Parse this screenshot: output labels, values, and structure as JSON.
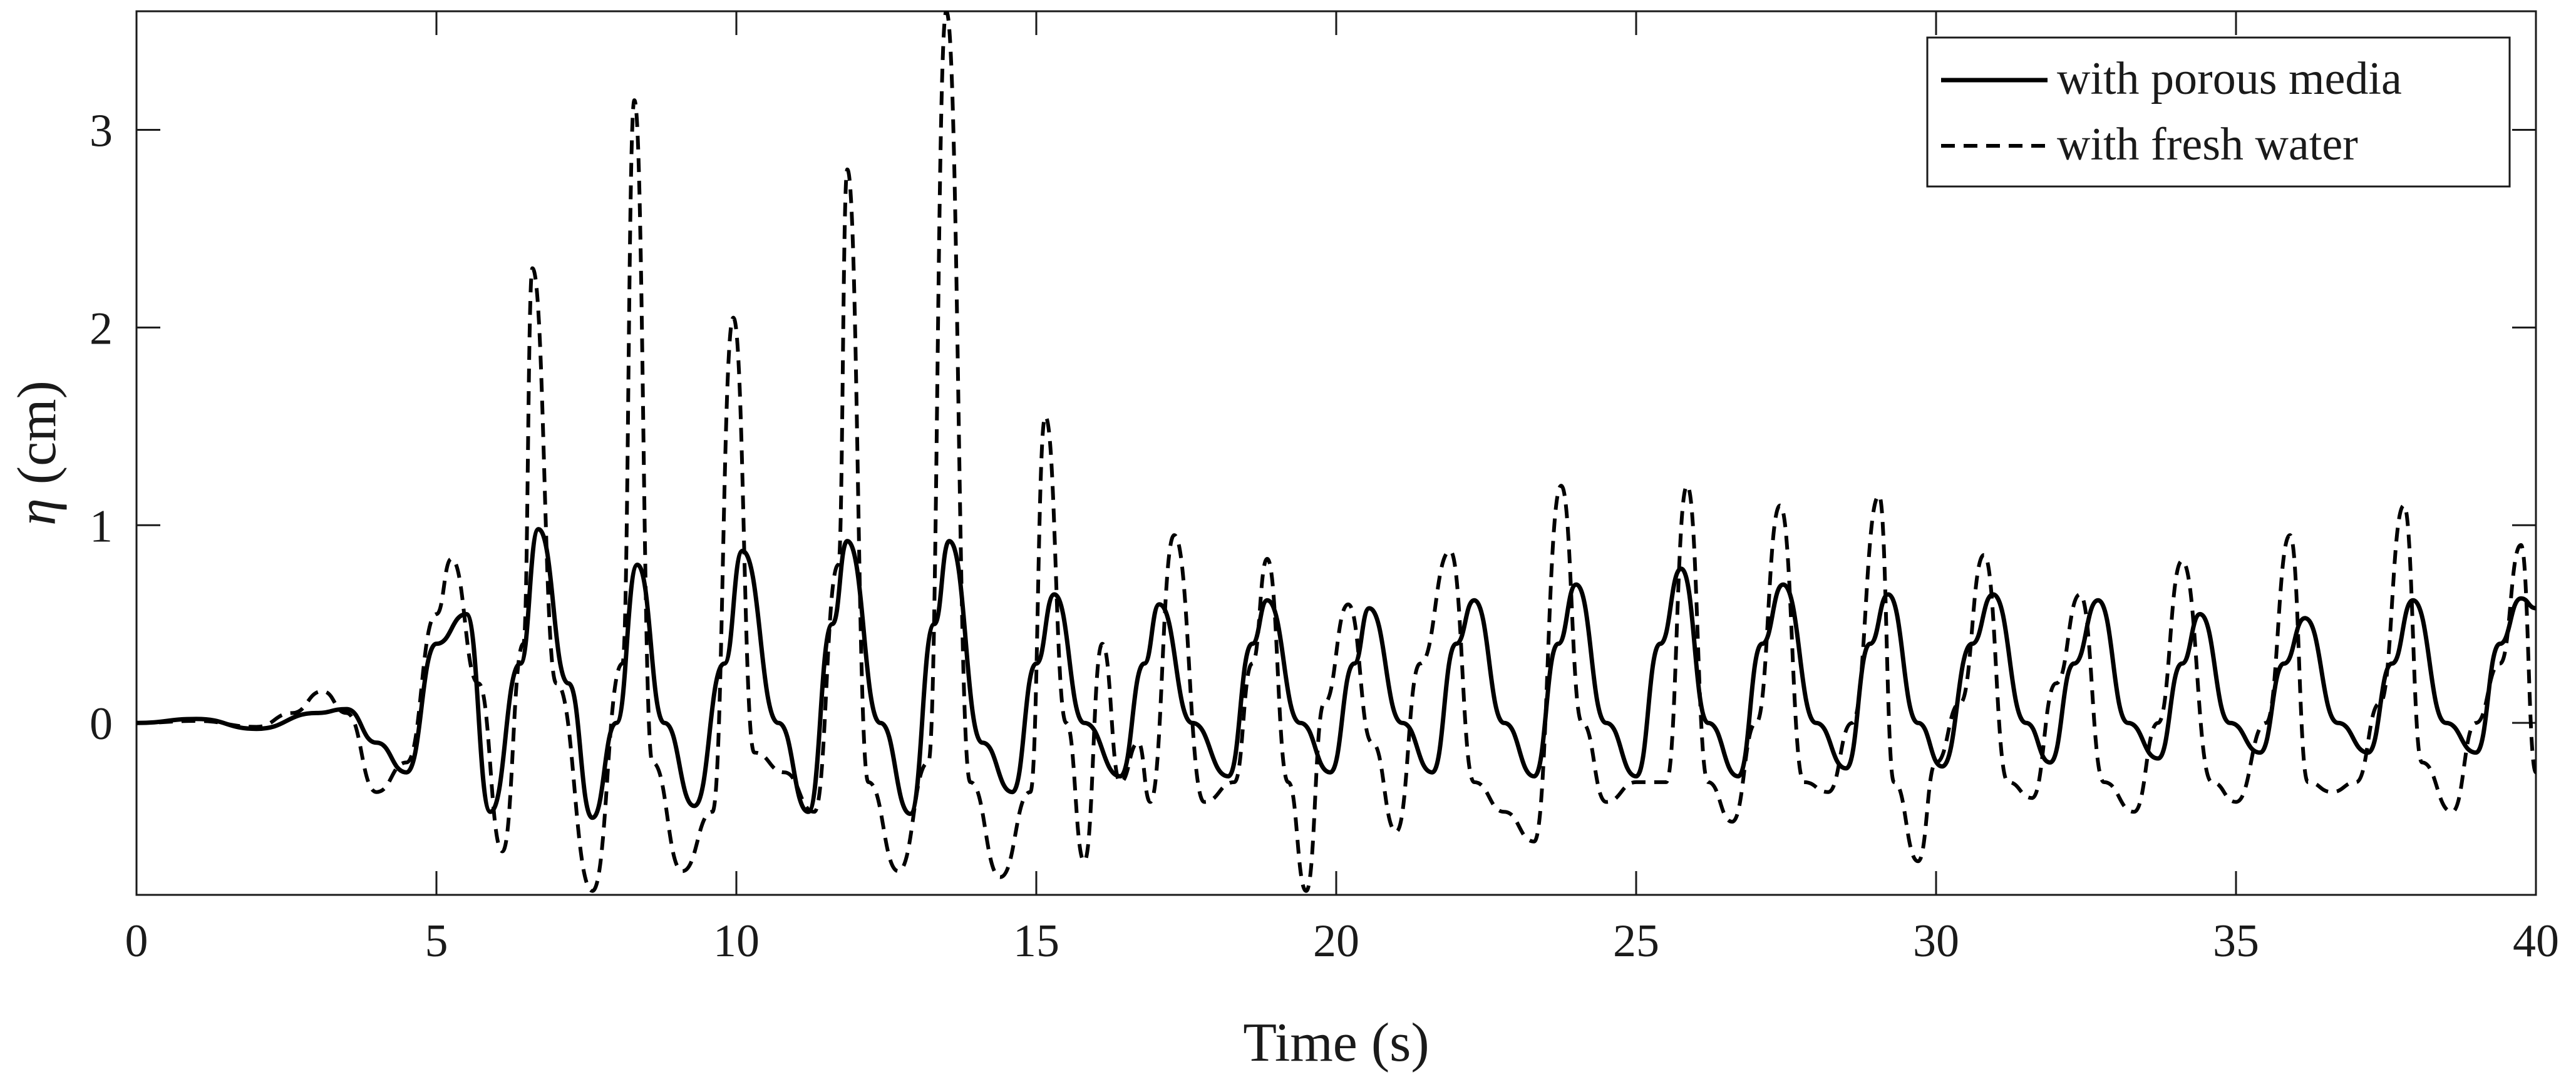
{
  "chart_data": {
    "type": "line",
    "xlabel": "Time (s)",
    "ylabel_symbol": "η",
    "ylabel_unit": " (cm)",
    "xlim": [
      0,
      40
    ],
    "ylim": [
      -0.87,
      3.6
    ],
    "xticks": [
      0,
      5,
      10,
      15,
      20,
      25,
      30,
      35,
      40
    ],
    "yticks": [
      0,
      1,
      2,
      3
    ],
    "grid": false,
    "legend_position": "top-right",
    "colors": {
      "series_line": "#000000",
      "axes": "#1a1a1a",
      "background": "#ffffff"
    },
    "series": [
      {
        "name": "with porous media",
        "style": "solid",
        "x": [
          0,
          1,
          2,
          3,
          3.5,
          4,
          4.5,
          5,
          5.5,
          5.9,
          6.4,
          6.7,
          7.2,
          7.6,
          8.0,
          8.35,
          8.8,
          9.3,
          9.8,
          10.1,
          10.7,
          11.2,
          11.6,
          11.85,
          12.4,
          12.9,
          13.3,
          13.55,
          14.1,
          14.6,
          15.0,
          15.3,
          15.8,
          16.4,
          16.8,
          17.05,
          17.6,
          18.2,
          18.6,
          18.85,
          19.4,
          19.9,
          20.3,
          20.55,
          21.1,
          21.6,
          22.0,
          22.3,
          22.8,
          23.3,
          23.7,
          24.0,
          24.5,
          25.0,
          25.4,
          25.75,
          26.2,
          26.7,
          27.1,
          27.45,
          28.0,
          28.5,
          28.9,
          29.2,
          29.7,
          30.1,
          30.6,
          30.95,
          31.5,
          31.9,
          32.3,
          32.7,
          33.2,
          33.7,
          34.1,
          34.4,
          34.9,
          35.4,
          35.8,
          36.15,
          36.7,
          37.2,
          37.6,
          37.95,
          38.5,
          39.0,
          39.4,
          39.75,
          40.0
        ],
        "y": [
          0,
          0.02,
          -0.03,
          0.05,
          0.07,
          -0.1,
          -0.25,
          0.4,
          0.55,
          -0.45,
          0.3,
          0.98,
          0.2,
          -0.48,
          0.0,
          0.8,
          0.0,
          -0.42,
          0.3,
          0.87,
          0.0,
          -0.45,
          0.5,
          0.92,
          0.0,
          -0.46,
          0.5,
          0.92,
          -0.1,
          -0.35,
          0.3,
          0.65,
          0.0,
          -0.27,
          0.3,
          0.6,
          0.0,
          -0.27,
          0.4,
          0.62,
          0.0,
          -0.25,
          0.3,
          0.58,
          0.0,
          -0.25,
          0.4,
          0.62,
          0.0,
          -0.27,
          0.4,
          0.7,
          0.0,
          -0.27,
          0.4,
          0.78,
          0.0,
          -0.27,
          0.4,
          0.7,
          0.0,
          -0.23,
          0.4,
          0.65,
          0.0,
          -0.22,
          0.4,
          0.65,
          0.0,
          -0.2,
          0.3,
          0.62,
          0.0,
          -0.18,
          0.3,
          0.55,
          0.0,
          -0.15,
          0.3,
          0.53,
          0.0,
          -0.15,
          0.3,
          0.62,
          0.0,
          -0.15,
          0.4,
          0.63,
          0.58
        ]
      },
      {
        "name": "with fresh water",
        "style": "dashed",
        "x": [
          0,
          1,
          2,
          2.6,
          3.1,
          3.5,
          4.0,
          4.5,
          5.0,
          5.25,
          5.7,
          6.1,
          6.45,
          6.6,
          7.0,
          7.6,
          8.1,
          8.3,
          8.6,
          9.1,
          9.6,
          9.95,
          10.3,
          10.8,
          11.3,
          11.7,
          11.85,
          12.2,
          12.7,
          13.2,
          13.5,
          13.9,
          14.4,
          14.9,
          15.15,
          15.5,
          15.8,
          16.1,
          16.4,
          16.7,
          16.9,
          17.3,
          17.8,
          18.3,
          18.6,
          18.85,
          19.2,
          19.5,
          19.8,
          20.2,
          20.6,
          21.0,
          21.4,
          21.9,
          22.3,
          22.8,
          23.3,
          23.75,
          24.1,
          24.5,
          25.0,
          25.5,
          25.85,
          26.2,
          26.6,
          27.0,
          27.4,
          27.8,
          28.2,
          28.6,
          29.05,
          29.3,
          29.7,
          30.0,
          30.4,
          30.8,
          31.2,
          31.6,
          32.0,
          32.4,
          32.8,
          33.3,
          33.7,
          34.1,
          34.6,
          35.0,
          35.5,
          35.9,
          36.2,
          36.6,
          37.0,
          37.4,
          37.8,
          38.1,
          38.6,
          39.0,
          39.4,
          39.75,
          40.0
        ],
        "y": [
          0,
          0.01,
          -0.02,
          0.05,
          0.16,
          0.05,
          -0.35,
          -0.2,
          0.55,
          0.83,
          0.2,
          -0.65,
          0.4,
          2.3,
          0.2,
          -0.85,
          0.3,
          3.15,
          -0.2,
          -0.75,
          -0.45,
          2.05,
          -0.15,
          -0.25,
          -0.45,
          0.8,
          2.8,
          -0.3,
          -0.75,
          -0.2,
          3.6,
          -0.3,
          -0.78,
          -0.35,
          1.55,
          0.0,
          -0.7,
          0.4,
          -0.3,
          -0.1,
          -0.4,
          0.95,
          -0.4,
          -0.3,
          0.3,
          0.83,
          -0.3,
          -0.85,
          0.1,
          0.6,
          -0.1,
          -0.55,
          0.3,
          0.87,
          -0.3,
          -0.45,
          -0.6,
          1.2,
          0.0,
          -0.4,
          -0.3,
          -0.3,
          1.2,
          -0.3,
          -0.5,
          0.0,
          1.1,
          -0.3,
          -0.35,
          0.0,
          1.15,
          -0.3,
          -0.7,
          -0.2,
          0.1,
          0.85,
          -0.3,
          -0.38,
          0.2,
          0.65,
          -0.3,
          -0.45,
          0.0,
          0.82,
          -0.3,
          -0.4,
          0.0,
          0.95,
          -0.3,
          -0.35,
          -0.3,
          0.1,
          1.1,
          -0.2,
          -0.45,
          0.0,
          0.3,
          0.9,
          -0.25
        ]
      }
    ]
  }
}
